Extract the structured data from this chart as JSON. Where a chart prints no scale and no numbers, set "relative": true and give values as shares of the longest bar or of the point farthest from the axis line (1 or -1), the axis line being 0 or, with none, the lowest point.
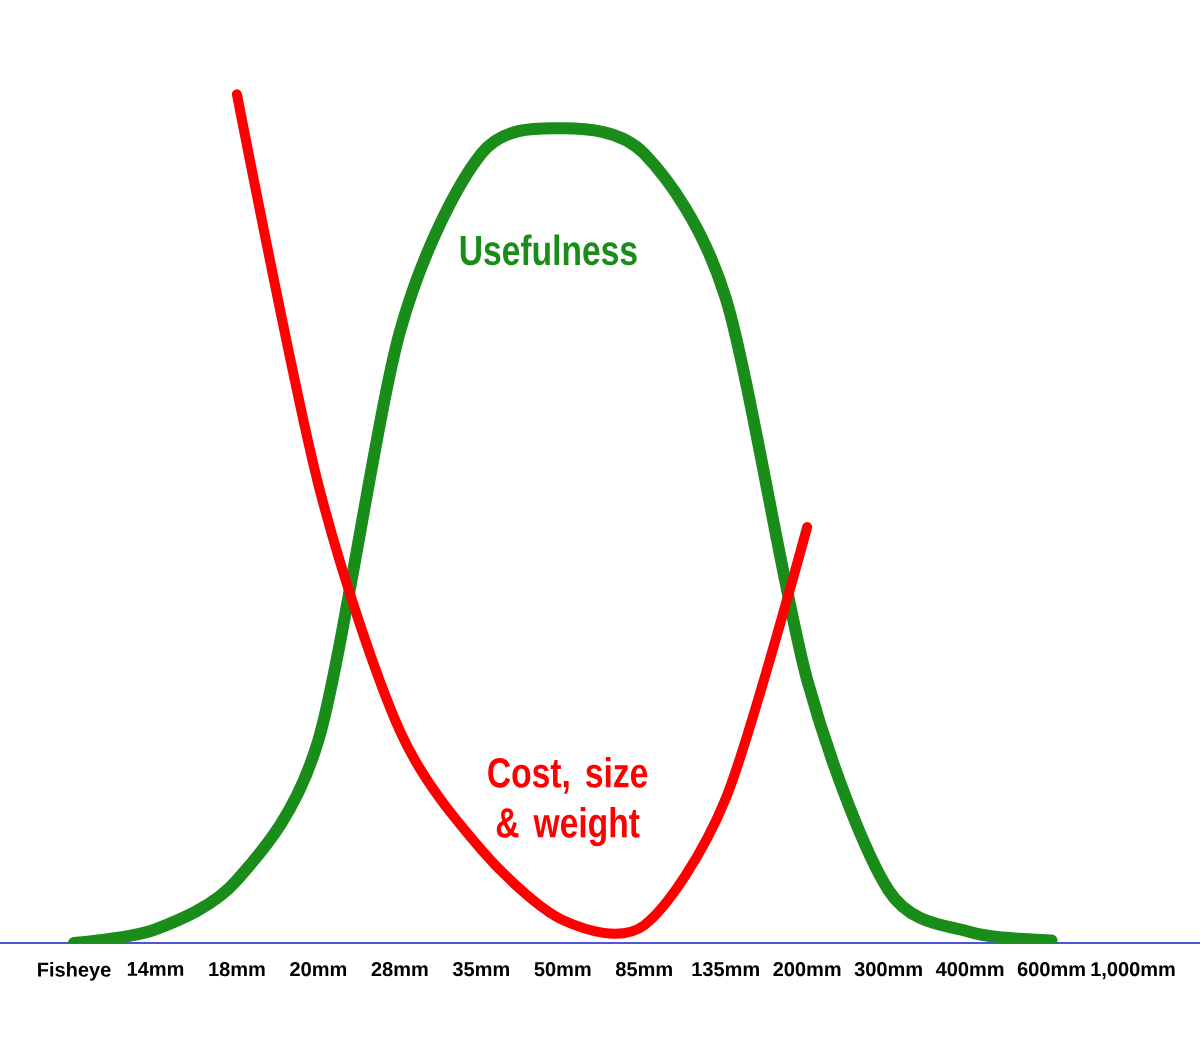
{
  "chart_data": {
    "type": "line",
    "relative": true,
    "legend": false,
    "grid": false,
    "marker": "none",
    "categories": [
      "Fisheye",
      "14mm",
      "18mm",
      "20mm",
      "28mm",
      "35mm",
      "50mm",
      "85mm",
      "135mm",
      "200mm",
      "300mm",
      "400mm",
      "600mm",
      "1,000mm"
    ],
    "series": [
      {
        "name": "Usefulness",
        "color": "#1a8c1a",
        "values": [
          0,
          0.016,
          0.074,
          0.239,
          0.72,
          0.93,
          0.96,
          0.93,
          0.76,
          0.31,
          0.062,
          0.013,
          0.003,
          null
        ]
      },
      {
        "name": "Cost, size & weight",
        "color": "#ff0000",
        "values": [
          null,
          null,
          1,
          0.54,
          0.25,
          0.11,
          0.027,
          0.021,
          0.17,
          0.49,
          null,
          null,
          null,
          null
        ]
      }
    ]
  }
}
